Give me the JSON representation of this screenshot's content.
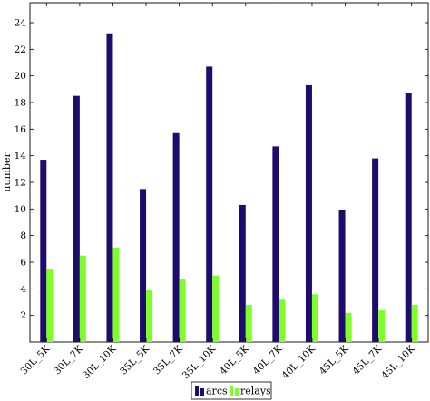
{
  "chart_data": {
    "type": "bar",
    "categories": [
      "30L_5K",
      "30L_7K",
      "30L_10K",
      "35L_5K",
      "35L_7K",
      "35L_10K",
      "40L_5K",
      "40L_7K",
      "40L_10K",
      "45L_5K",
      "45L_7K",
      "45L_10K"
    ],
    "series": [
      {
        "name": "arcs",
        "color": "#1f0a6e",
        "values": [
          13.7,
          18.5,
          23.2,
          11.5,
          15.7,
          20.7,
          10.3,
          14.7,
          19.3,
          9.9,
          13.8,
          18.7
        ]
      },
      {
        "name": "relays",
        "color": "#7fff2a",
        "values": [
          5.5,
          6.5,
          7.1,
          3.9,
          4.7,
          5.0,
          2.8,
          3.2,
          3.6,
          2.2,
          2.4,
          2.8
        ]
      }
    ],
    "title": "",
    "xlabel": "",
    "ylabel": "number",
    "ylim": [
      0,
      25.5
    ],
    "yticks": [
      2,
      4,
      6,
      8,
      10,
      12,
      14,
      16,
      18,
      20,
      22,
      24
    ],
    "grid": false,
    "legend_position": "bottom-center"
  }
}
